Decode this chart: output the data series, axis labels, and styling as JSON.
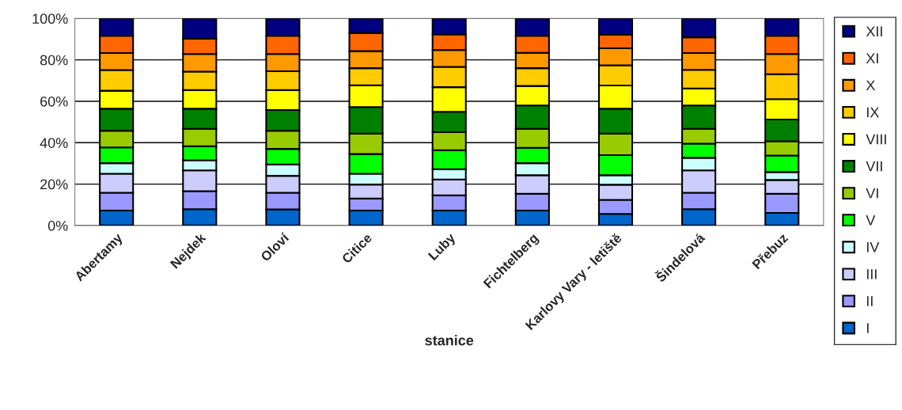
{
  "chart_data": {
    "type": "bar",
    "stacked": true,
    "xlabel": "stanice",
    "categories": [
      "Abertamy",
      "Nejdek",
      "Oloví",
      "Citice",
      "Luby",
      "Fichtelberg",
      "Karlovy Vary - letiště",
      "Šindelová",
      "Přebuz"
    ],
    "series": [
      {
        "name": "I",
        "color": "#0066cc",
        "values": [
          7.2,
          7.9,
          7.8,
          7.2,
          7.2,
          7.2,
          5.6,
          7.9,
          6.1
        ]
      },
      {
        "name": "II",
        "color": "#9999ff",
        "values": [
          8.6,
          8.7,
          8.0,
          5.8,
          7.4,
          8.1,
          6.8,
          7.9,
          9.2
        ]
      },
      {
        "name": "III",
        "color": "#ccccff",
        "values": [
          9.2,
          10.0,
          8.2,
          6.8,
          7.6,
          9.0,
          7.3,
          10.8,
          6.7
        ]
      },
      {
        "name": "IV",
        "color": "#ccffff",
        "values": [
          5.1,
          4.9,
          5.5,
          5.2,
          5.0,
          5.8,
          4.6,
          6.1,
          3.8
        ]
      },
      {
        "name": "V",
        "color": "#00ff00",
        "values": [
          7.6,
          6.8,
          7.5,
          9.5,
          9.2,
          7.4,
          9.7,
          6.8,
          8.0
        ]
      },
      {
        "name": "VI",
        "color": "#99cc00",
        "values": [
          8.1,
          8.4,
          8.8,
          9.9,
          8.7,
          9.2,
          10.4,
          7.2,
          6.9
        ]
      },
      {
        "name": "VII",
        "color": "#008000",
        "values": [
          10.6,
          9.7,
          10.0,
          12.8,
          9.8,
          11.3,
          12.0,
          11.3,
          10.5
        ]
      },
      {
        "name": "VIII",
        "color": "#ffff00",
        "values": [
          8.7,
          9.0,
          9.6,
          10.5,
          11.9,
          9.4,
          11.2,
          8.2,
          9.8
        ]
      },
      {
        "name": "IX",
        "color": "#ffcc00",
        "values": [
          10.0,
          8.9,
          9.1,
          8.3,
          9.8,
          8.6,
          9.8,
          9.0,
          12.1
        ]
      },
      {
        "name": "X",
        "color": "#ff9900",
        "values": [
          8.2,
          8.5,
          8.3,
          8.2,
          8.1,
          7.4,
          8.2,
          8.1,
          9.7
        ]
      },
      {
        "name": "XI",
        "color": "#ff6600",
        "values": [
          8.3,
          7.4,
          8.8,
          8.8,
          7.6,
          8.2,
          6.6,
          7.6,
          8.8
        ]
      },
      {
        "name": "XII",
        "color": "#000080",
        "values": [
          8.4,
          9.8,
          8.4,
          7.0,
          7.7,
          8.4,
          7.8,
          9.1,
          8.4
        ]
      }
    ],
    "ylim": [
      0,
      100
    ],
    "yticks": [
      {
        "value": 0,
        "label": "0%"
      },
      {
        "value": 20,
        "label": "20%"
      },
      {
        "value": 40,
        "label": "40%"
      },
      {
        "value": 60,
        "label": "60%"
      },
      {
        "value": 80,
        "label": "80%"
      },
      {
        "value": 100,
        "label": "100%"
      }
    ],
    "grid": "y",
    "legend": "right"
  }
}
